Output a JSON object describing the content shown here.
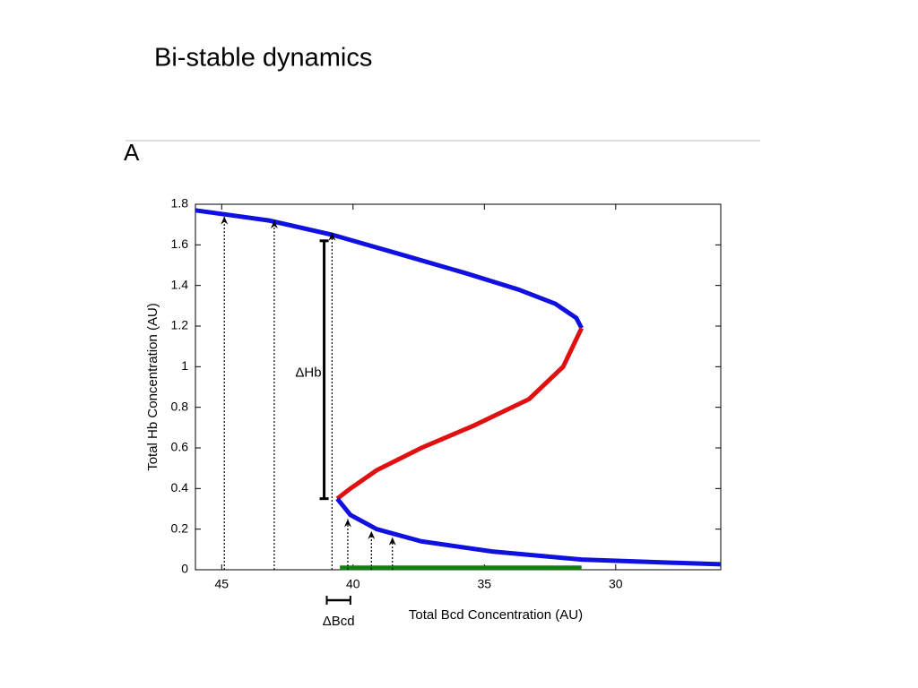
{
  "slide_title": "Bi-stable dynamics",
  "panel_label": "A",
  "chart_data": {
    "type": "line",
    "x_label": "Total Bcd Concentration (AU)",
    "y_label": "Total Hb Concentration (AU)",
    "xlim": [
      46,
      26
    ],
    "ylim": [
      0,
      1.8
    ],
    "xticks": [
      45,
      40,
      35,
      30
    ],
    "yticks": [
      0,
      0.2,
      0.4,
      0.6,
      0.8,
      1,
      1.2,
      1.4,
      1.6,
      1.8
    ],
    "series": [
      {
        "color": "#1010e0",
        "x": [
          46.0,
          43.2,
          40.8,
          38.1,
          35.7,
          33.7,
          32.3,
          31.5,
          31.3
        ],
        "values": [
          1.77,
          1.72,
          1.65,
          1.55,
          1.46,
          1.38,
          1.31,
          1.24,
          1.19
        ]
      },
      {
        "color": "#e01010",
        "x": [
          31.3,
          32.0,
          33.3,
          35.4,
          37.4,
          39.1,
          40.1,
          40.6
        ],
        "values": [
          1.19,
          1.0,
          0.84,
          0.71,
          0.6,
          0.49,
          0.4,
          0.35
        ]
      },
      {
        "color": "#1010e0",
        "x": [
          40.6,
          40.1,
          39.1,
          37.4,
          34.7,
          31.3,
          27.9,
          26.0
        ],
        "values": [
          0.35,
          0.27,
          0.2,
          0.14,
          0.09,
          0.05,
          0.035,
          0.027
        ]
      },
      {
        "color": "#108010",
        "x": [
          40.5,
          31.3
        ],
        "values": [
          0.01,
          0.01
        ]
      }
    ],
    "arrows": [
      {
        "x": 44.9,
        "y": 1.74
      },
      {
        "x": 43.0,
        "y": 1.72
      },
      {
        "x": 40.8,
        "y": 1.66
      },
      {
        "x": 40.2,
        "y": 0.25
      },
      {
        "x": 39.3,
        "y": 0.19
      },
      {
        "x": 38.5,
        "y": 0.16
      }
    ],
    "hb_bar": {
      "x": 41.1,
      "y": [
        0.35,
        1.62
      ],
      "label": "ΔHb"
    },
    "bcd_bar": {
      "x": [
        41.0,
        40.1
      ],
      "label": "ΔBcd"
    }
  }
}
